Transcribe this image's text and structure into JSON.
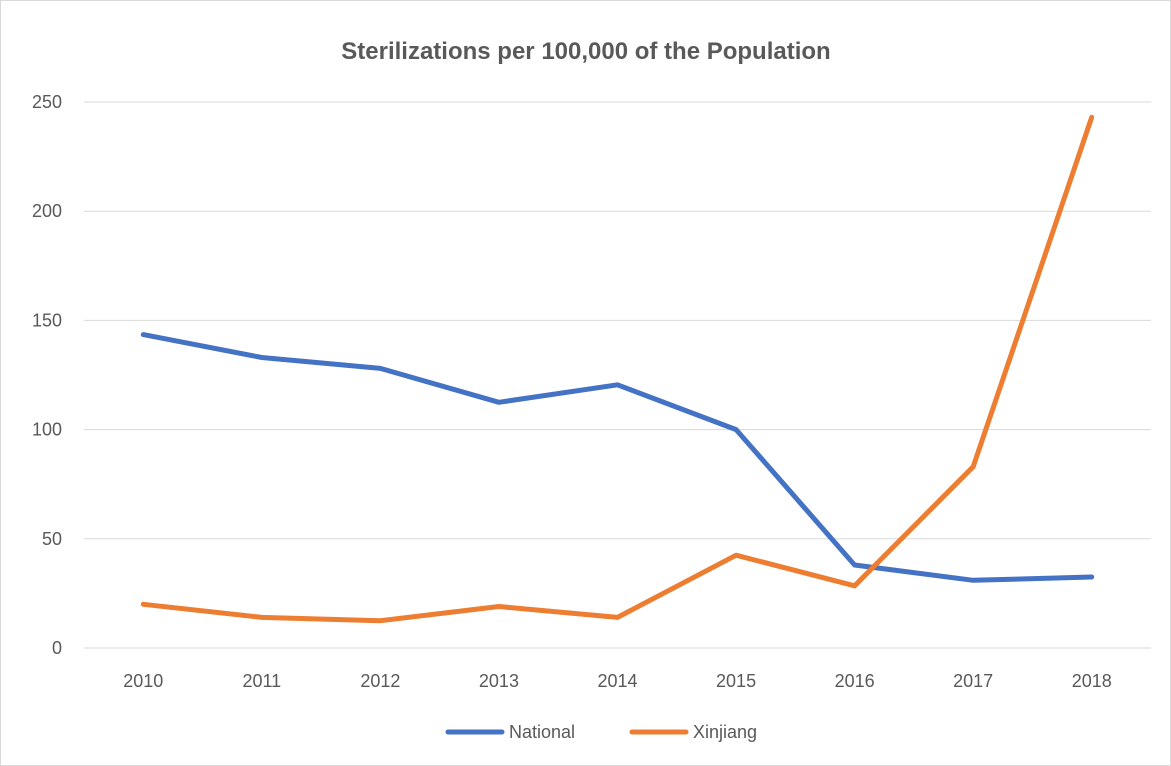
{
  "chart_data": {
    "type": "line",
    "title": "Sterilizations per 100,000 of the Population",
    "xlabel": "",
    "ylabel": "",
    "categories": [
      "2010",
      "2011",
      "2012",
      "2013",
      "2014",
      "2015",
      "2016",
      "2017",
      "2018"
    ],
    "ylim": [
      0,
      250
    ],
    "yticks": [
      0,
      50,
      100,
      150,
      200,
      250
    ],
    "grid": true,
    "legend": "bottom",
    "series": [
      {
        "name": "National",
        "color": "#4472c4",
        "values": [
          143.5,
          133,
          128,
          112.5,
          120.5,
          100,
          38,
          31,
          32.5
        ]
      },
      {
        "name": "Xinjiang",
        "color": "#ed7d31",
        "values": [
          20,
          14,
          12.5,
          19,
          14,
          42.5,
          28.5,
          83,
          243
        ]
      }
    ]
  }
}
